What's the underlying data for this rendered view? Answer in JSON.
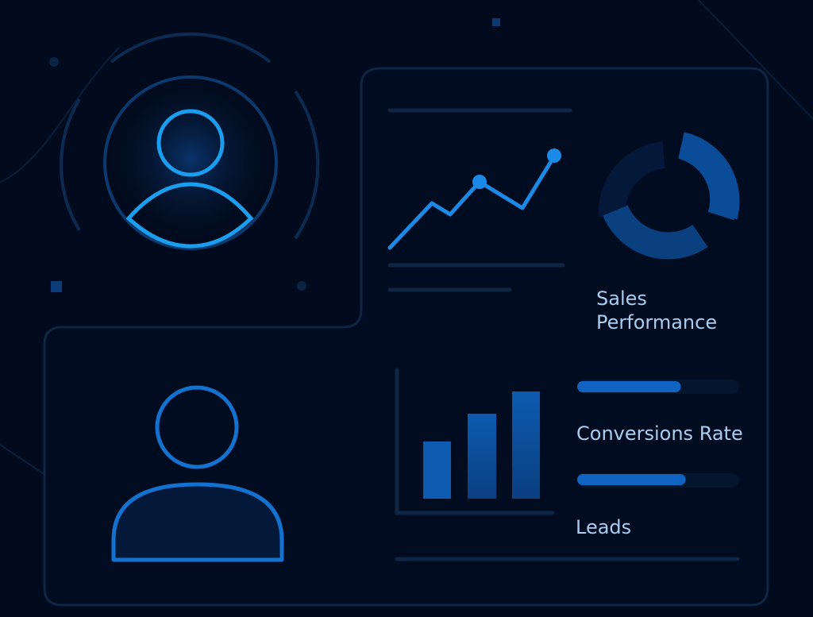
{
  "colors": {
    "background": "#020b1d",
    "panel_border": "#0e2544",
    "accent": "#1a8ae6",
    "accent_dark": "#0a4a94",
    "text": "#a9cdf0"
  },
  "icons": [
    "user-avatar-icon",
    "user-avatar-icon",
    "line-chart-icon",
    "donut-chart-icon",
    "bar-chart-icon"
  ],
  "labels": {
    "sales_line1": "Sales",
    "sales_line2": "Performance",
    "conversions": "Conversions Rate",
    "leads": "Leads"
  },
  "progress": {
    "conversions_percent": 64,
    "leads_percent": 67
  }
}
